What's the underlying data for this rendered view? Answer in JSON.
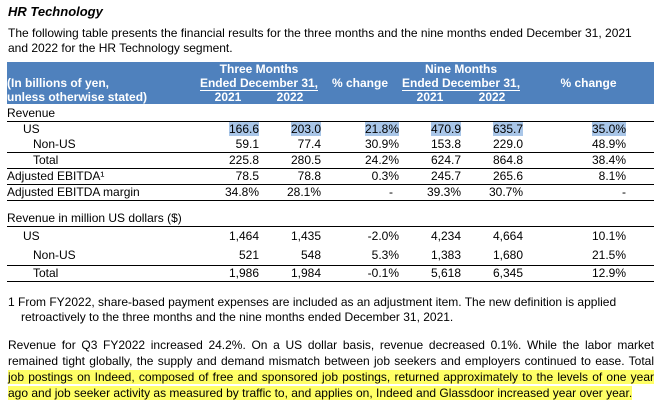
{
  "title": "HR Technology",
  "intro": "The following table presents the financial results for the three months and the nine months ended December 31, 2021 and 2022 for the HR Technology segment.",
  "table": {
    "unit_line1": "(In billions of yen,",
    "unit_line2": "unless otherwise stated)",
    "three_months": "Three Months",
    "ended": "Ended December 31,",
    "nine_months": "Nine Months",
    "pct_change": "% change",
    "y2021": "2021",
    "y2022": "2022",
    "revenue_label": "Revenue",
    "rows": [
      {
        "label": "US",
        "t21": "166.6",
        "t22": "203.0",
        "tpct": "21.8%",
        "n21": "470.9",
        "n22": "635.7",
        "npct": "35.0%"
      },
      {
        "label": "Non-US",
        "t21": "59.1",
        "t22": "77.4",
        "tpct": "30.9%",
        "n21": "153.8",
        "n22": "229.0",
        "npct": "48.9%"
      },
      {
        "label": "Total",
        "t21": "225.8",
        "t22": "280.5",
        "tpct": "24.2%",
        "n21": "624.7",
        "n22": "864.8",
        "npct": "38.4%"
      },
      {
        "label": "Adjusted EBITDA¹",
        "t21": "78.5",
        "t22": "78.8",
        "tpct": "0.3%",
        "n21": "245.7",
        "n22": "265.6",
        "npct": "8.1%"
      },
      {
        "label": "Adjusted EBITDA margin",
        "t21": "34.8%",
        "t22": "28.1%",
        "tpct": "-",
        "n21": "39.3%",
        "n22": "30.7%",
        "npct": "-"
      }
    ],
    "usd_label": "Revenue in million US dollars ($)",
    "usd_rows": [
      {
        "label": "US",
        "t21": "1,464",
        "t22": "1,435",
        "tpct": "-2.0%",
        "n21": "4,234",
        "n22": "4,664",
        "npct": "10.1%"
      },
      {
        "label": "Non-US",
        "t21": "521",
        "t22": "548",
        "tpct": "5.3%",
        "n21": "1,383",
        "n22": "1,680",
        "npct": "21.5%"
      },
      {
        "label": "Total",
        "t21": "1,986",
        "t22": "1,984",
        "tpct": "-0.1%",
        "n21": "5,618",
        "n22": "6,345",
        "npct": "12.9%"
      }
    ]
  },
  "footnote_line1": "1 From FY2022, share-based payment expenses are included as an adjustment item. The new definition is applied",
  "footnote_line2": "retroactively to the three months and the nine months ended December 31, 2021.",
  "paragraph_plain": "Revenue for Q3 FY2022 increased 24.2%. On a US dollar basis, revenue decreased 0.1%. While the labor market remained tight globally, the supply and demand mismatch between job seekers and employers continued to ease. Total ",
  "paragraph_highlight": "job postings on Indeed, composed of free and sponsored job postings, returned approximately to the levels of one year ago and job seeker activity as measured by traffic to, and applies on, Indeed and Glassdoor increased year over year."
}
